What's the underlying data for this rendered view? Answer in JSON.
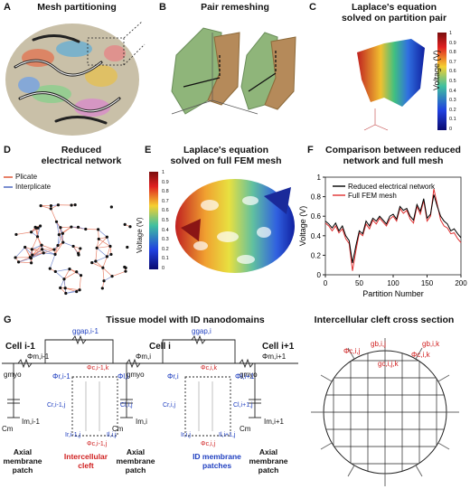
{
  "panels": {
    "A": {
      "letter": "A",
      "title": "Mesh partitioning"
    },
    "B": {
      "letter": "B",
      "title": "Pair remeshing"
    },
    "C": {
      "letter": "C",
      "title": "Laplace's equation\nsolved on partition pair",
      "colorbar_label": "Voltage (V)",
      "ticks": [
        "1",
        "0.9",
        "0.8",
        "0.7",
        "0.6",
        "0.5",
        "0.4",
        "0.3",
        "0.2",
        "0.1",
        "0"
      ]
    },
    "D": {
      "letter": "D",
      "title": "Reduced\nelectrical network",
      "legend": [
        "Plicate",
        "Interplicate"
      ]
    },
    "E": {
      "letter": "E",
      "title": "Laplace's equation\nsolved on full FEM mesh",
      "colorbar_label": "Voltage (V)",
      "ticks": [
        "1",
        "0.9",
        "0.8",
        "0.7",
        "0.6",
        "0.5",
        "0.4",
        "0.3",
        "0.2",
        "0.1",
        "0"
      ]
    },
    "F": {
      "letter": "F",
      "title": "Comparison between reduced\nnetwork and full mesh"
    },
    "G": {
      "letter": "G",
      "title": "Tissue model with ID nanodomains",
      "right_title": "Intercellular cleft cross section",
      "cells": [
        "Cell i-1",
        "Cell i",
        "Cell i+1"
      ],
      "labels": {
        "phi_m_prev": "Φm,i-1",
        "phi_m": "Φm,i",
        "phi_m_next": "Φm,i+1",
        "g_myo": "gmyo",
        "g_gap_prev": "ggap,i-1",
        "g_gap": "ggap,i",
        "cm": "Cm",
        "i_m_prev": "Im,i-1",
        "i_m": "Im,i",
        "i_m_next": "Im,i+1",
        "axial_patch": "Axial\nmembrane\npatch",
        "cleft": "Intercellular\ncleft",
        "id_patches": "ID membrane\npatches",
        "phi_r_prev": "Φr,i-1",
        "phi_l": "Φl,i",
        "phi_r": "Φr,i",
        "phi_l_next": "Φl,i+1",
        "phi_c_prev": "Φc,i-1,j",
        "phi_c": "Φc,i,j",
        "phi_c_prev_k": "Φc,i-1,k",
        "phi_c_k": "Φc,i,k",
        "c_r_prev": "Cr,i-1,j",
        "c_l": "Cl,i,j",
        "c_r": "Cr,i,j",
        "c_l_next": "Cl,i+1,j",
        "i_r_prev": "Ir,i-1,j",
        "i_l": "Il,i,j",
        "i_r": "Ir,i,j",
        "i_l_next": "Il,i+1,j",
        "g_b": "gb,i,j",
        "g_cleft": "gc,i,j,k",
        "g_bk": "gb,i,k",
        "phi_cij": "Φc,i,j",
        "phi_cik": "Φc,i,k",
        "g_b_prev": "gb,i-1,j"
      }
    }
  },
  "chart_data": {
    "type": "line",
    "title": "Comparison between reduced\nnetwork and full mesh",
    "xlabel": "Partition Number",
    "ylabel": "Voltage (V)",
    "xlim": [
      0,
      200
    ],
    "ylim": [
      0,
      1
    ],
    "xticks": [
      0,
      50,
      100,
      150,
      200
    ],
    "yticks": [
      0,
      0.2,
      0.4,
      0.6,
      0.8,
      1
    ],
    "legend_position": "top-center",
    "series": [
      {
        "name": "Reduced electrical network",
        "color": "#000000",
        "x": [
          0,
          5,
          10,
          15,
          20,
          25,
          30,
          35,
          40,
          45,
          50,
          55,
          60,
          65,
          70,
          75,
          80,
          85,
          90,
          95,
          100,
          105,
          110,
          115,
          120,
          125,
          130,
          135,
          140,
          145,
          150,
          155,
          160,
          165,
          170,
          175,
          180,
          185,
          190,
          195,
          200
        ],
        "values": [
          0.55,
          0.52,
          0.48,
          0.53,
          0.45,
          0.5,
          0.4,
          0.35,
          0.12,
          0.3,
          0.45,
          0.42,
          0.55,
          0.5,
          0.58,
          0.55,
          0.6,
          0.56,
          0.52,
          0.6,
          0.62,
          0.57,
          0.7,
          0.66,
          0.68,
          0.6,
          0.56,
          0.72,
          0.65,
          0.78,
          0.58,
          0.62,
          0.82,
          0.7,
          0.6,
          0.55,
          0.52,
          0.45,
          0.47,
          0.42,
          0.38
        ]
      },
      {
        "name": "Full FEM mesh",
        "color": "#e03030",
        "x": [
          0,
          5,
          10,
          15,
          20,
          25,
          30,
          35,
          40,
          45,
          50,
          55,
          60,
          65,
          70,
          75,
          80,
          85,
          90,
          95,
          100,
          105,
          110,
          115,
          120,
          125,
          130,
          135,
          140,
          145,
          150,
          155,
          160,
          165,
          170,
          175,
          180,
          185,
          190,
          195,
          200
        ],
        "values": [
          0.53,
          0.5,
          0.45,
          0.5,
          0.43,
          0.47,
          0.37,
          0.32,
          0.04,
          0.25,
          0.43,
          0.4,
          0.52,
          0.47,
          0.56,
          0.52,
          0.58,
          0.54,
          0.5,
          0.57,
          0.6,
          0.55,
          0.68,
          0.63,
          0.66,
          0.57,
          0.53,
          0.7,
          0.62,
          0.76,
          0.55,
          0.6,
          0.88,
          0.72,
          0.56,
          0.5,
          0.48,
          0.42,
          0.43,
          0.37,
          0.33
        ]
      }
    ]
  },
  "colors": {
    "plicate": "#e8826a",
    "interplicate": "#7a8ed0",
    "red_text": "#d02020",
    "blue_text": "#2040c0"
  }
}
